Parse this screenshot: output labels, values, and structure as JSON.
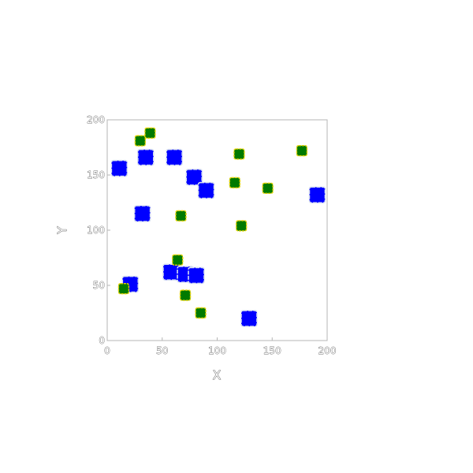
{
  "chart_data": {
    "type": "scatter",
    "title": "",
    "xlabel": "X",
    "ylabel": "Y",
    "xlim": [
      0,
      200
    ],
    "ylim": [
      0,
      200
    ],
    "xticks": [
      0,
      50,
      100,
      150,
      200
    ],
    "yticks": [
      0,
      50,
      100,
      150,
      200
    ],
    "grid": false,
    "legend": "none",
    "series": [
      {
        "color": "#0000ff",
        "edgecolor": "#d8e0f0",
        "marker": "square-large",
        "points": [
          {
            "x": 11,
            "y": 156
          },
          {
            "x": 35,
            "y": 166
          },
          {
            "x": 61,
            "y": 166
          },
          {
            "x": 79,
            "y": 148
          },
          {
            "x": 90,
            "y": 136
          },
          {
            "x": 32,
            "y": 115
          },
          {
            "x": 21,
            "y": 51
          },
          {
            "x": 58,
            "y": 62
          },
          {
            "x": 71,
            "y": 60
          },
          {
            "x": 81,
            "y": 59
          },
          {
            "x": 129,
            "y": 20
          },
          {
            "x": 191,
            "y": 132
          }
        ]
      },
      {
        "color": "#007a00",
        "edgecolor": "#e6d400",
        "marker": "square-small",
        "points": [
          {
            "x": 30,
            "y": 181
          },
          {
            "x": 39,
            "y": 188
          },
          {
            "x": 15,
            "y": 47
          },
          {
            "x": 64,
            "y": 73
          },
          {
            "x": 67,
            "y": 113
          },
          {
            "x": 71,
            "y": 41
          },
          {
            "x": 85,
            "y": 25
          },
          {
            "x": 116,
            "y": 143
          },
          {
            "x": 120,
            "y": 169
          },
          {
            "x": 122,
            "y": 104
          },
          {
            "x": 146,
            "y": 138
          },
          {
            "x": 177,
            "y": 172
          }
        ]
      }
    ]
  }
}
